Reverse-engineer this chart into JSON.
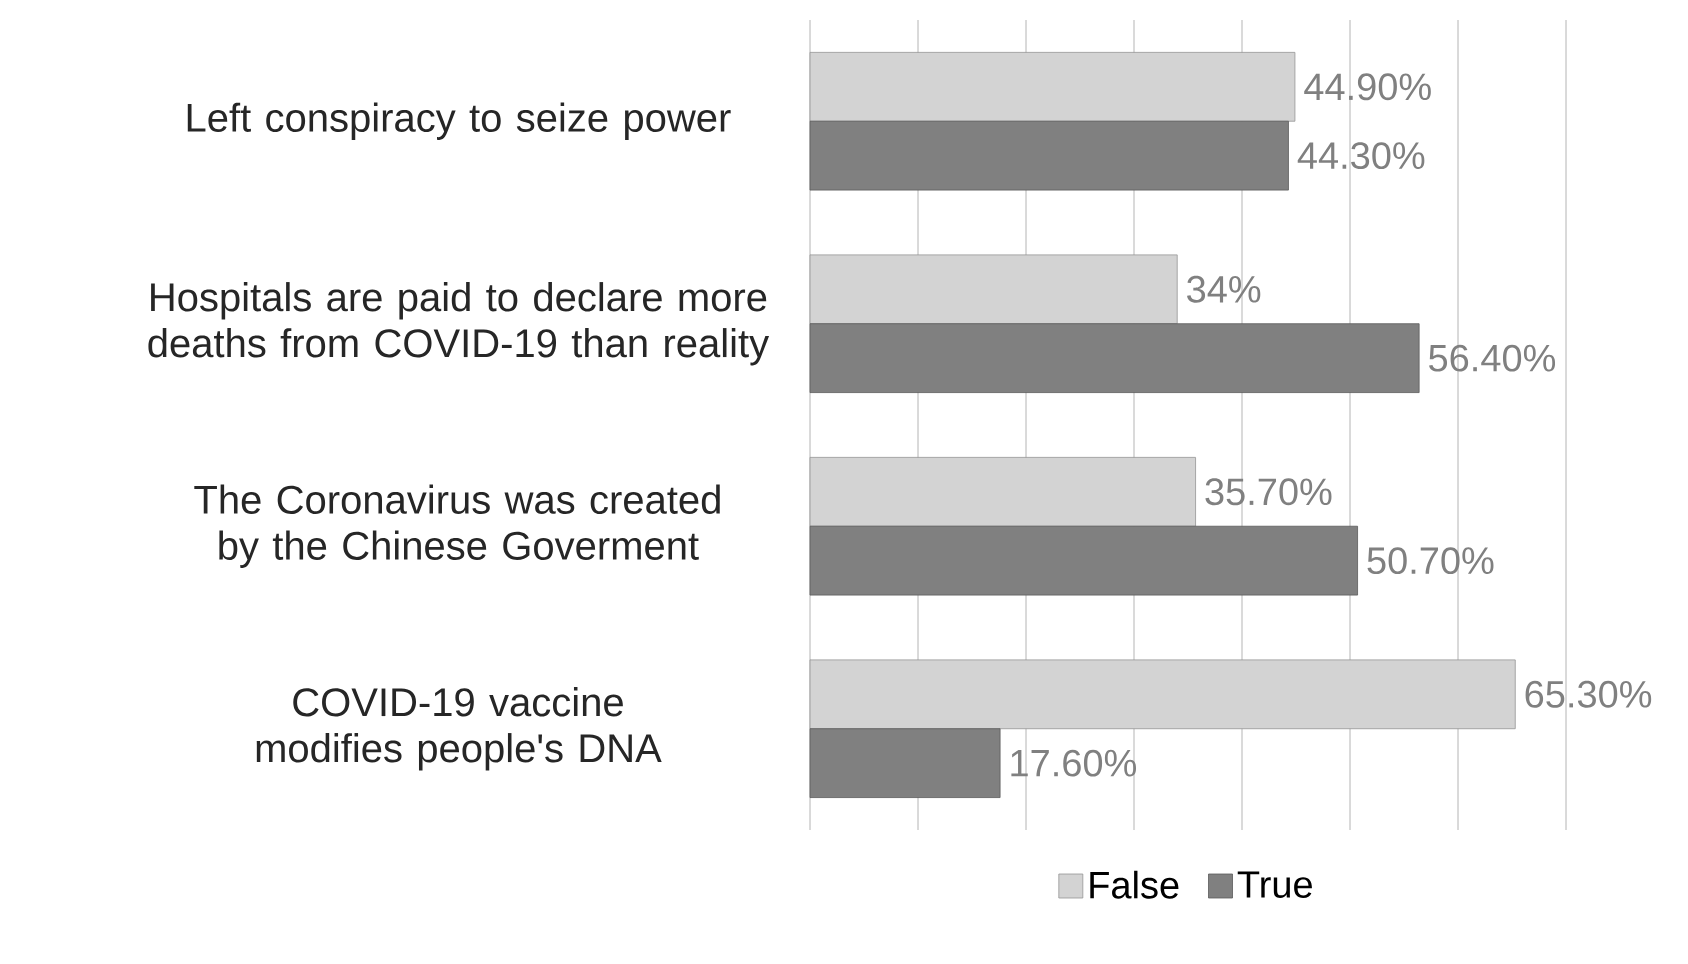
{
  "chart_data": {
    "type": "bar",
    "orientation": "horizontal",
    "categories": [
      "Left conspiracy to seize power",
      "Hospitals are paid to declare more deaths from COVID-19 than reality",
      "The Coronavirus was created by the Chinese  Goverment",
      "COVID-19 vaccine modifies people's DNA"
    ],
    "series": [
      {
        "name": "False",
        "color": "#d3d3d3",
        "values": [
          44.9,
          34,
          35.7,
          65.3
        ],
        "value_labels": [
          "44.90%",
          "34%",
          "35.70%",
          "65.30%"
        ]
      },
      {
        "name": "True",
        "color": "#808080",
        "values": [
          44.3,
          56.4,
          50.7,
          17.6
        ],
        "value_labels": [
          "44.30%",
          "56.40%",
          "50.70%",
          "17.60%"
        ]
      }
    ],
    "xlim": [
      0,
      70
    ],
    "xticks": [
      {
        "value": 0,
        "label": null
      },
      {
        "value": 10,
        "label": null
      },
      {
        "value": 20,
        "label": null
      },
      {
        "value": 30,
        "label": null
      },
      {
        "value": 40,
        "label": null
      },
      {
        "value": 50,
        "label": null
      },
      {
        "value": 60,
        "label": null
      },
      {
        "value": 70,
        "label": null
      }
    ],
    "grid": "x",
    "legend": "bottom",
    "tick_labels": "y"
  }
}
